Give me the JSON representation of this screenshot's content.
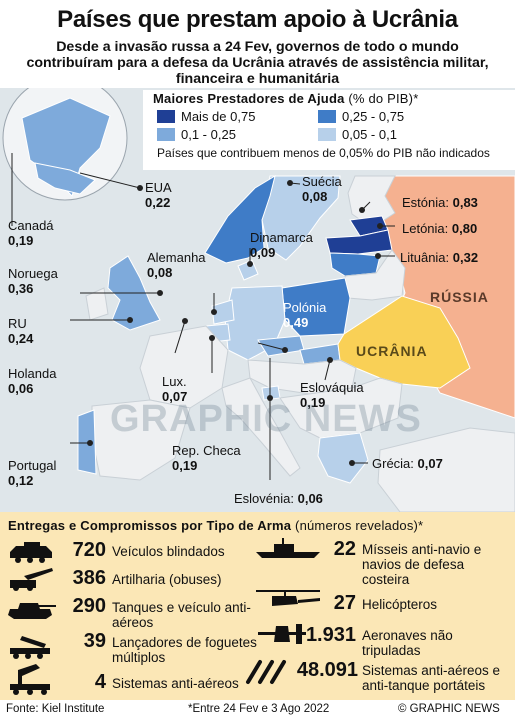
{
  "title": "Países que prestam apoio à Ucrânia",
  "subtitle": "Desde a invasão russa a 24 Fev, governos de todo o mundo contribuíram para a defesa da Ucrânia através de assistência militar, financeira e humanitária",
  "legend": {
    "title": "Maiores Prestadores de Ajuda",
    "unit": "(% do PIB)*",
    "items": [
      {
        "label": "Mais de 0,75",
        "color": "#1f3f95"
      },
      {
        "label": "0,25 - 0,75",
        "color": "#3f7cc7"
      },
      {
        "label": "0,1 - 0,25",
        "color": "#7eaadb"
      },
      {
        "label": "0,05 - 0,1",
        "color": "#b7d0ea"
      }
    ],
    "note": "Países que contribuem menos de 0,05% do PIB não indicados"
  },
  "countries": [
    {
      "name": "EUA",
      "value": "0,22"
    },
    {
      "name": "Canadá",
      "value": "0,19"
    },
    {
      "name": "Noruega",
      "value": "0,36"
    },
    {
      "name": "RU",
      "value": "0,24"
    },
    {
      "name": "Holanda",
      "value": "0,06"
    },
    {
      "name": "Portugal",
      "value": "0,12"
    },
    {
      "name": "Alemanha",
      "value": "0,08"
    },
    {
      "name": "Lux.",
      "value": "0,07"
    },
    {
      "name": "Rep. Checa",
      "value": "0,19"
    },
    {
      "name": "Eslovénia:",
      "value": "0,06"
    },
    {
      "name": "Eslováquia",
      "value": "0,19"
    },
    {
      "name": "Polónia",
      "value": "0,49"
    },
    {
      "name": "Dinamarca",
      "value": "0,09"
    },
    {
      "name": "Suécia",
      "value": "0,08"
    },
    {
      "name": "Estónia:",
      "value": "0,83"
    },
    {
      "name": "Letónia:",
      "value": "0,80"
    },
    {
      "name": "Lituânia:",
      "value": "0,32"
    },
    {
      "name": "Grécia:",
      "value": "0,07"
    }
  ],
  "region_labels": {
    "russia": "RÚSSIA",
    "ukraine": "UCRÂNIA"
  },
  "watermark": "GRAPHIC NEWS",
  "weapons": {
    "title": "Entregas e Compromissos por Tipo de Arma",
    "subtitle": "(números revelados)*",
    "left": [
      {
        "number": "720",
        "label": "Veículos blindados",
        "icon": "armored-vehicle-icon"
      },
      {
        "number": "386",
        "label": "Artilharia (obuses)",
        "icon": "howitzer-icon"
      },
      {
        "number": "290",
        "label": "Tanques e veículo anti-aéreos",
        "icon": "tank-icon"
      },
      {
        "number": "39",
        "label": "Lançadores de foguetes múltiplos",
        "icon": "rocket-launcher-icon"
      },
      {
        "number": "4",
        "label": "Sistemas anti-aéreos",
        "icon": "air-defense-icon"
      }
    ],
    "right": [
      {
        "number": "22",
        "label": "Mísseis anti-navio e navios de defesa costeira",
        "icon": "warship-icon"
      },
      {
        "number": "27",
        "label": "Helicópteros",
        "icon": "helicopter-icon"
      },
      {
        "number": "1.931",
        "label": "Aeronaves não tripuladas",
        "icon": "drone-icon"
      },
      {
        "number": "48.091",
        "label": "Sistemas anti-aéreos e anti-tanque portáteis",
        "icon": "missiles-icon"
      }
    ]
  },
  "footer": {
    "source": "Fonte: Kiel Institute",
    "dates": "*Entre 24 Fev e 3 Ago 2022",
    "copyright": "© GRAPHIC NEWS"
  }
}
